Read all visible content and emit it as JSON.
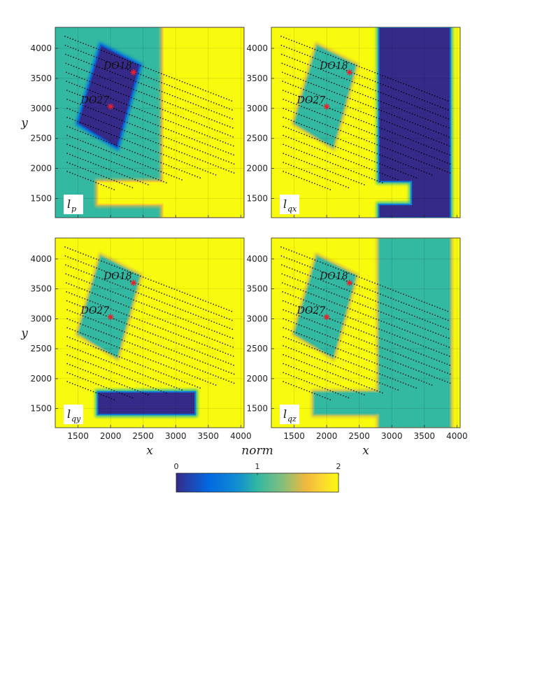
{
  "chart_data": {
    "type": "heatmap",
    "colorbar": {
      "label": "norm",
      "ticks": [
        "0",
        "1",
        "2"
      ],
      "range": [
        0,
        2
      ],
      "colormap": "parula"
    },
    "wells": [
      {
        "name": "DO18",
        "x": 2350,
        "y": 3600
      },
      {
        "name": "DO27",
        "x": 2000,
        "y": 3030
      }
    ],
    "well_marker_color": "#e8202a",
    "survey_marker_color": "#000000",
    "panels": [
      {
        "label": "l",
        "subscript": "p",
        "xlim": [
          1150,
          4050
        ],
        "ylim": [
          1180,
          4350
        ],
        "background_value": 1,
        "regions": [
          {
            "shape": "parallelogram",
            "value": 0,
            "corners": [
              [
                1850,
                4050
              ],
              [
                2450,
                3720
              ],
              [
                2100,
                2350
              ],
              [
                1500,
                2750
              ]
            ]
          },
          {
            "shape": "polygon",
            "value": 2,
            "vertices": [
              [
                2800,
                4350
              ],
              [
                4050,
                4350
              ],
              [
                4050,
                1180
              ],
              [
                2800,
                1180
              ],
              [
                2800,
                1400
              ],
              [
                1800,
                1400
              ],
              [
                1800,
                1780
              ],
              [
                2800,
                1780
              ]
            ]
          }
        ],
        "xticks": [],
        "yticks": [
          1500,
          2000,
          2500,
          3000,
          3500,
          4000
        ],
        "xlabel": "",
        "ylabel": "y"
      },
      {
        "label": "l",
        "subscript": "qx",
        "xlim": [
          1150,
          4050
        ],
        "ylim": [
          1180,
          4350
        ],
        "background_value": 2,
        "regions": [
          {
            "shape": "parallelogram",
            "value": 1,
            "corners": [
              [
                1850,
                4050
              ],
              [
                2450,
                3720
              ],
              [
                2100,
                2350
              ],
              [
                1500,
                2750
              ]
            ]
          },
          {
            "shape": "polygon",
            "value": 0,
            "vertices": [
              [
                2800,
                4350
              ],
              [
                3900,
                4350
              ],
              [
                3900,
                1180
              ],
              [
                2800,
                1180
              ],
              [
                2800,
                1400
              ],
              [
                3300,
                1400
              ],
              [
                3300,
                1780
              ],
              [
                2800,
                1780
              ]
            ]
          }
        ],
        "xticks": [],
        "yticks": [
          1500,
          2000,
          2500,
          3000,
          3500,
          4000
        ],
        "xlabel": "",
        "ylabel": ""
      },
      {
        "label": "l",
        "subscript": "qy",
        "xlim": [
          1150,
          4050
        ],
        "ylim": [
          1180,
          4350
        ],
        "background_value": 2,
        "regions": [
          {
            "shape": "parallelogram",
            "value": 1,
            "corners": [
              [
                1850,
                4050
              ],
              [
                2450,
                3720
              ],
              [
                2100,
                2350
              ],
              [
                1500,
                2750
              ]
            ]
          },
          {
            "shape": "polygon",
            "value": 0,
            "vertices": [
              [
                1800,
                1780
              ],
              [
                3300,
                1780
              ],
              [
                3300,
                1400
              ],
              [
                1800,
                1400
              ]
            ]
          }
        ],
        "xticks": [
          1500,
          2000,
          2500,
          3000,
          3500,
          4000
        ],
        "yticks": [
          1500,
          2000,
          2500,
          3000,
          3500,
          4000
        ],
        "xlabel": "x",
        "ylabel": "y"
      },
      {
        "label": "l",
        "subscript": "qz",
        "xlim": [
          1150,
          4050
        ],
        "ylim": [
          1180,
          4350
        ],
        "background_value": 2,
        "regions": [
          {
            "shape": "parallelogram",
            "value": 1,
            "corners": [
              [
                1850,
                4050
              ],
              [
                2450,
                3720
              ],
              [
                2100,
                2350
              ],
              [
                1500,
                2750
              ]
            ]
          },
          {
            "shape": "polygon",
            "value": 1,
            "vertices": [
              [
                2800,
                4350
              ],
              [
                3900,
                4350
              ],
              [
                3900,
                1180
              ],
              [
                2800,
                1180
              ],
              [
                2800,
                1400
              ],
              [
                1800,
                1400
              ],
              [
                1800,
                1780
              ],
              [
                2800,
                1780
              ]
            ]
          }
        ],
        "xticks": [
          1500,
          2000,
          2500,
          3000,
          3500,
          4000
        ],
        "yticks": [
          1500,
          2000,
          2500,
          3000,
          3500,
          4000
        ],
        "xlabel": "x",
        "ylabel": ""
      }
    ],
    "grid": true
  }
}
